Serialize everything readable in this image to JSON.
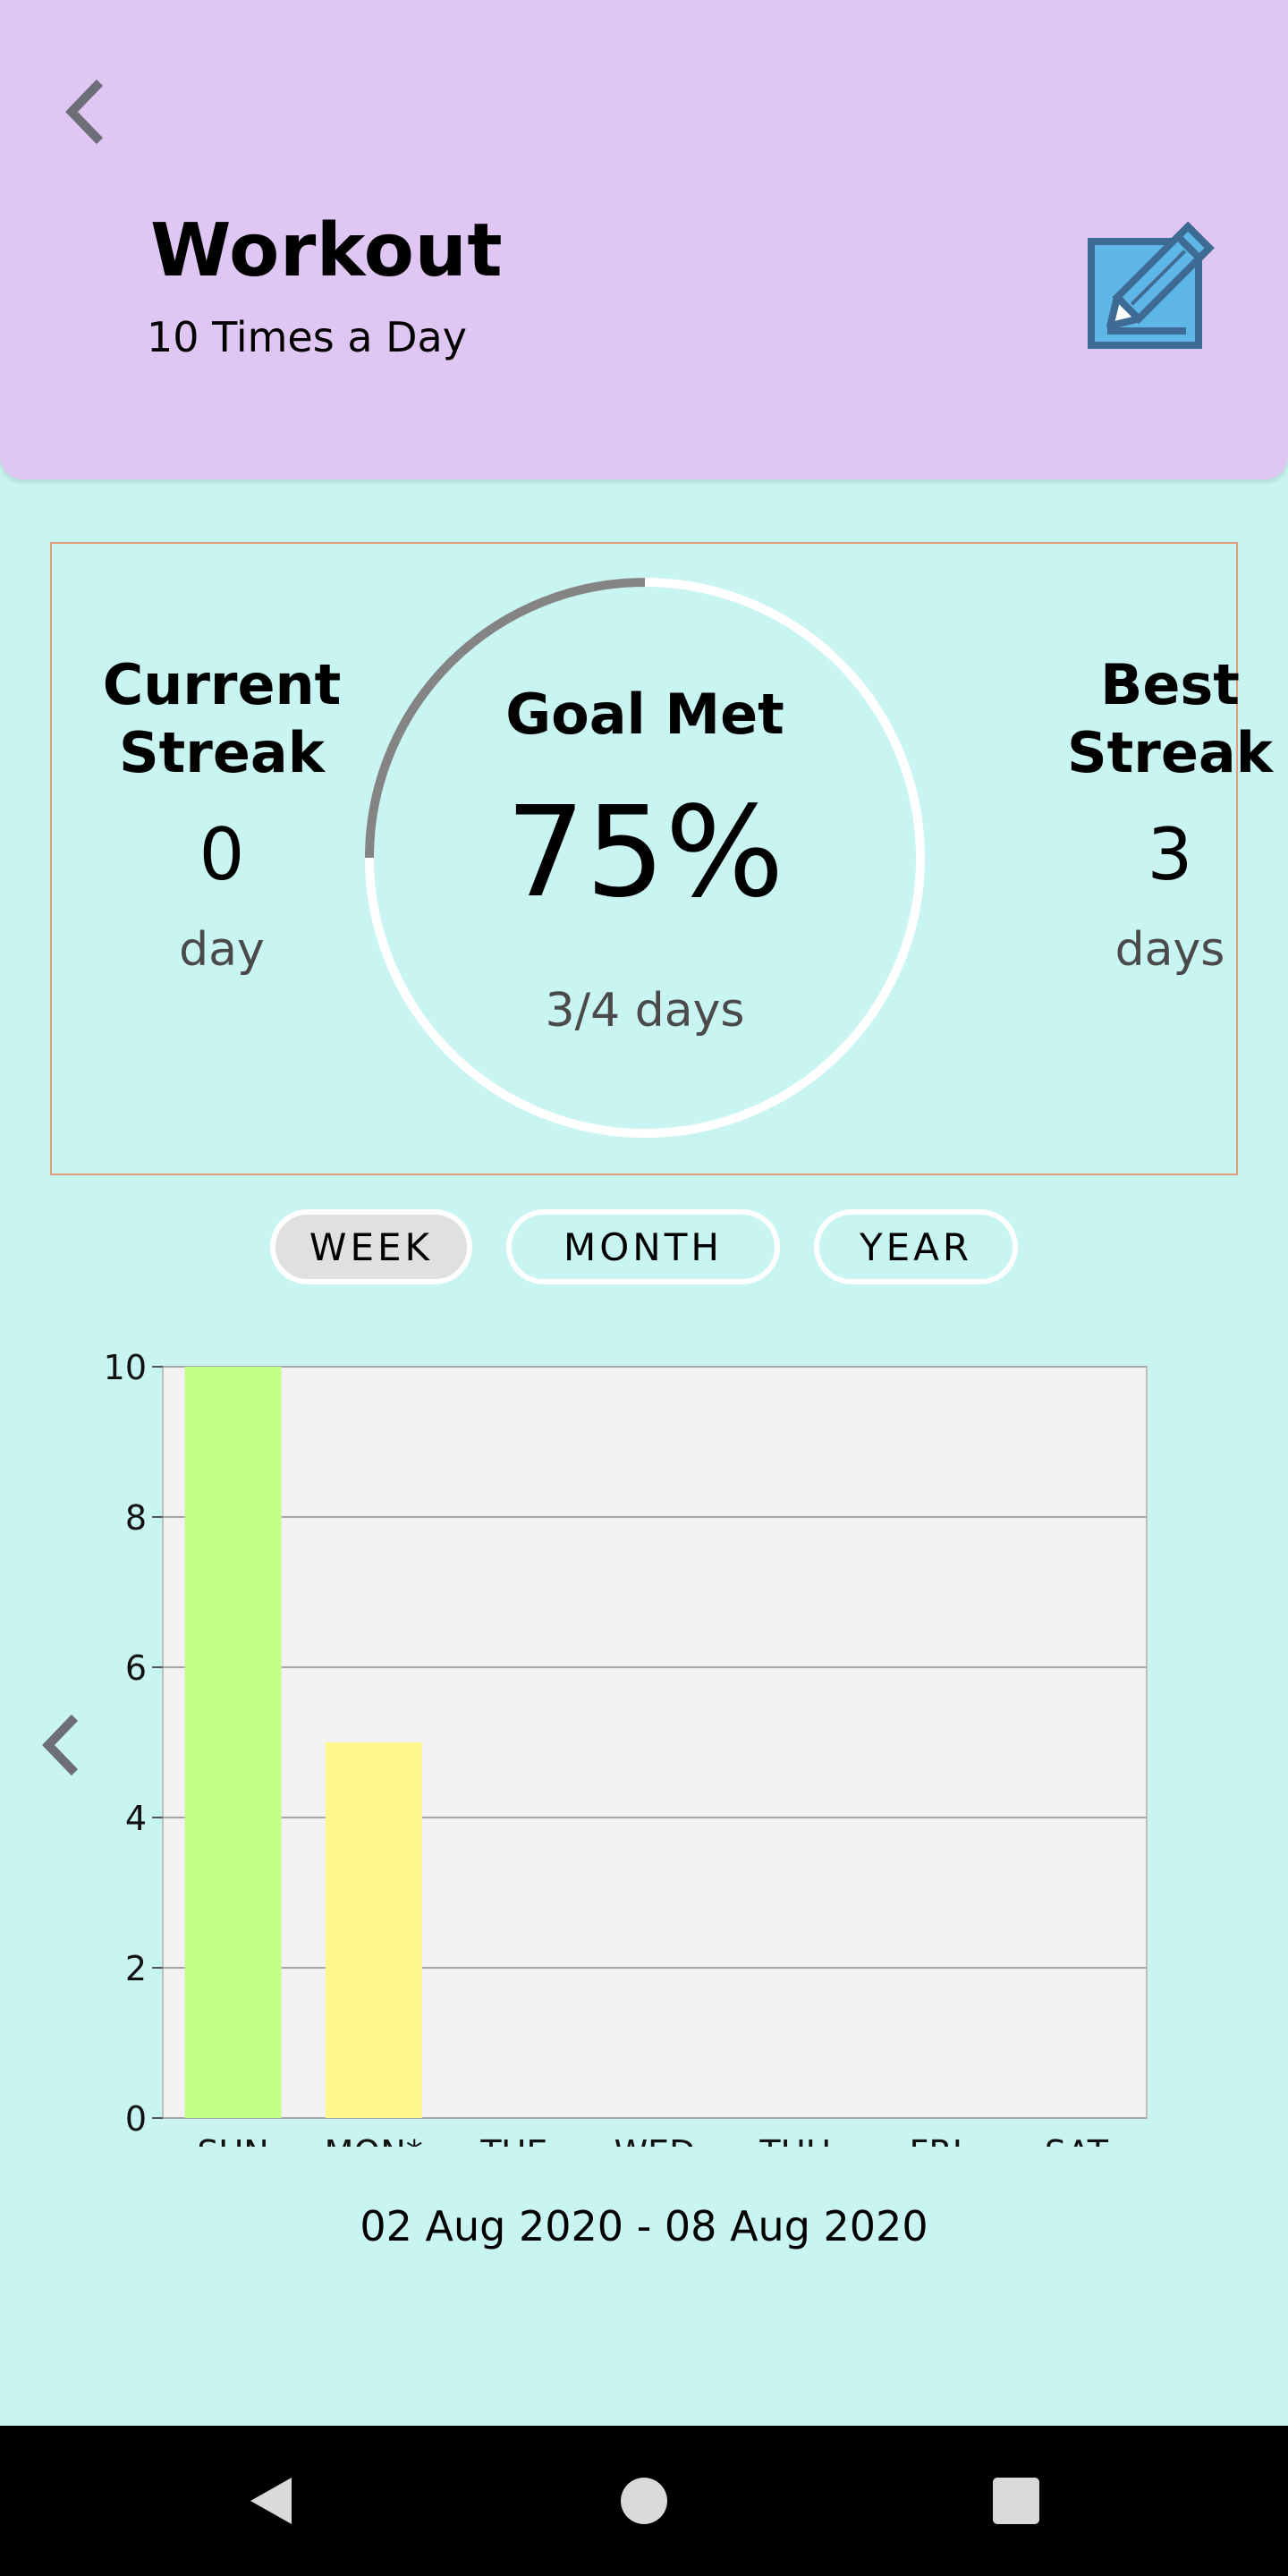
{
  "header": {
    "title": "Workout",
    "subtitle": "10 Times a Day",
    "back_icon": "chevron-left-icon",
    "edit_icon": "pencil-square-icon",
    "background_color": "#e0c7f3"
  },
  "stats": {
    "current_streak": {
      "label_line1": "Current",
      "label_line2": "Streak",
      "value": "0",
      "unit": "day"
    },
    "goal": {
      "label": "Goal Met",
      "percent_text": "75%",
      "fraction": 0.75,
      "days_text": "3/4 days"
    },
    "best_streak": {
      "label_line1": "Best",
      "label_line2": "Streak",
      "value": "3",
      "unit": "days"
    }
  },
  "tabs": [
    {
      "label": "WEEK",
      "selected": true
    },
    {
      "label": "MONTH",
      "selected": false
    },
    {
      "label": "YEAR",
      "selected": false
    }
  ],
  "chart_data": {
    "type": "bar",
    "categories": [
      "SUN",
      "MON*",
      "TUE",
      "WED",
      "THU",
      "FRI",
      "SAT"
    ],
    "values": [
      10,
      5,
      0,
      0,
      0,
      0,
      0
    ],
    "bar_colors": [
      "#c3ff85",
      "#fff88c",
      "#c3ff85",
      "#c3ff85",
      "#c3ff85",
      "#c3ff85",
      "#c3ff85"
    ],
    "ylim": [
      0,
      10
    ],
    "yticks": [
      0,
      2,
      4,
      6,
      8,
      10
    ],
    "grid": true,
    "plot_background": "#f2f2f2",
    "title": "",
    "xlabel": "",
    "ylabel": ""
  },
  "chart_footer": {
    "date_range": "02 Aug 2020 - 08 Aug 2020",
    "prev_icon": "chevron-left-icon"
  },
  "navbar": {
    "back_icon": "triangle-back-icon",
    "home_icon": "circle-home-icon",
    "recents_icon": "square-recents-icon"
  }
}
